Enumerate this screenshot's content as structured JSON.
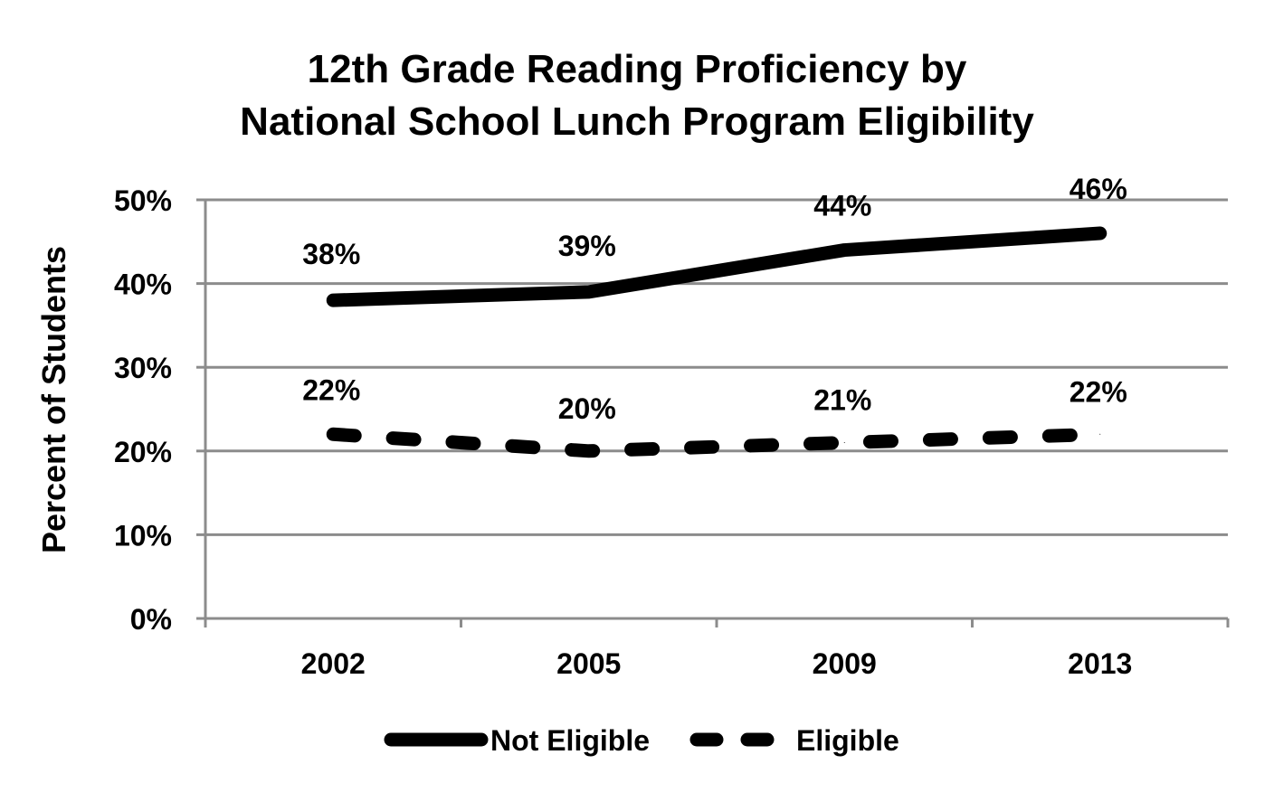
{
  "chart_data": {
    "type": "line",
    "title_lines": [
      "12th Grade Reading Proficiency by",
      "National School Lunch Program Eligibility"
    ],
    "ylabel": "Percent of Students",
    "xlabel": "",
    "categories": [
      "2002",
      "2005",
      "2009",
      "2013"
    ],
    "ylim": [
      0,
      50
    ],
    "yticks": [
      "0%",
      "10%",
      "20%",
      "30%",
      "40%",
      "50%"
    ],
    "grid": true,
    "legend_position": "bottom",
    "series": [
      {
        "name": "Not Eligible",
        "values": [
          38,
          39,
          44,
          46
        ],
        "labels": [
          "38%",
          "39%",
          "44%",
          "46%"
        ],
        "style": "solid",
        "color": "#000000"
      },
      {
        "name": "Eligible",
        "values": [
          22,
          20,
          21,
          22
        ],
        "labels": [
          "22%",
          "20%",
          "21%",
          "22%"
        ],
        "style": "dashed",
        "color": "#000000"
      }
    ]
  }
}
